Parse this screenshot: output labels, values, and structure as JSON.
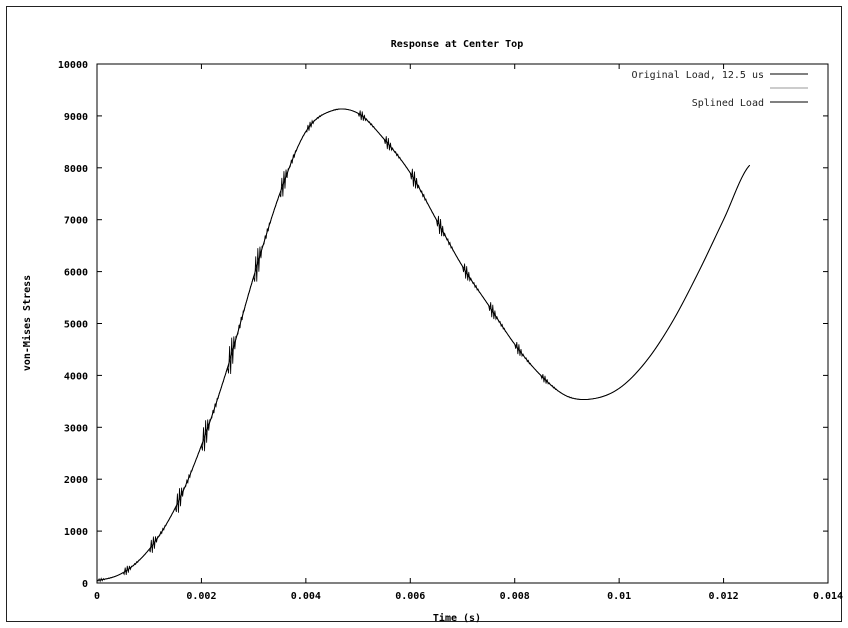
{
  "chart_data": {
    "type": "line",
    "title": "Response at Center Top",
    "xlabel": "Time (s)",
    "ylabel": "von-Mises Stress",
    "xlim": [
      0,
      0.014
    ],
    "ylim": [
      0,
      10000
    ],
    "x_ticks": [
      {
        "value": 0,
        "label": "0"
      },
      {
        "value": 0.002,
        "label": "0.002"
      },
      {
        "value": 0.004,
        "label": "0.004"
      },
      {
        "value": 0.006,
        "label": "0.006"
      },
      {
        "value": 0.008,
        "label": "0.008"
      },
      {
        "value": 0.01,
        "label": "0.01"
      },
      {
        "value": 0.012,
        "label": "0.012"
      },
      {
        "value": 0.014,
        "label": "0.014"
      }
    ],
    "y_ticks": [
      {
        "value": 0,
        "label": "0"
      },
      {
        "value": 1000,
        "label": "1000"
      },
      {
        "value": 2000,
        "label": "2000"
      },
      {
        "value": 3000,
        "label": "3000"
      },
      {
        "value": 4000,
        "label": "4000"
      },
      {
        "value": 5000,
        "label": "5000"
      },
      {
        "value": 6000,
        "label": "6000"
      },
      {
        "value": 7000,
        "label": "7000"
      },
      {
        "value": 8000,
        "label": "8000"
      },
      {
        "value": 9000,
        "label": "9000"
      },
      {
        "value": 10000,
        "label": "10000"
      }
    ],
    "grid": false,
    "legend_position": "top-right",
    "series": [
      {
        "name": "Original Load, 12.5 us",
        "color": "#000000",
        "style": "stepped-oscillating",
        "x": [
          0,
          0.0005,
          0.001,
          0.0015,
          0.002,
          0.0025,
          0.003,
          0.0035,
          0.004,
          0.0045,
          0.005,
          0.0055,
          0.006,
          0.0065,
          0.007,
          0.0075,
          0.008,
          0.0085,
          0.009,
          0.0095,
          0.01,
          0.0105,
          0.011,
          0.0115,
          0.012,
          0.0125
        ],
        "y": [
          50,
          200,
          650,
          1450,
          2650,
          4150,
          5900,
          7500,
          8700,
          9100,
          9050,
          8550,
          7900,
          7000,
          6100,
          5350,
          4600,
          4000,
          3600,
          3550,
          3750,
          4250,
          5000,
          5950,
          7000,
          8050
        ]
      },
      {
        "name": "",
        "color": "#555555",
        "style": "solid",
        "x": [
          0,
          0.0005,
          0.001,
          0.0015,
          0.002,
          0.0025,
          0.003,
          0.0035,
          0.004,
          0.0045,
          0.005,
          0.0055,
          0.006,
          0.0065,
          0.007,
          0.0075,
          0.008,
          0.0085,
          0.009,
          0.0095,
          0.01,
          0.0105,
          0.011,
          0.0115,
          0.012,
          0.0125
        ],
        "y": [
          50,
          200,
          650,
          1450,
          2650,
          4150,
          5900,
          7500,
          8700,
          9100,
          9050,
          8550,
          7900,
          7000,
          6100,
          5350,
          4600,
          4000,
          3600,
          3550,
          3750,
          4250,
          5000,
          5950,
          7000,
          8050
        ]
      },
      {
        "name": "Splined Load",
        "color": "#000000",
        "style": "solid",
        "x": [
          0,
          0.0005,
          0.001,
          0.0015,
          0.002,
          0.0025,
          0.003,
          0.0035,
          0.004,
          0.0045,
          0.005,
          0.0055,
          0.006,
          0.0065,
          0.007,
          0.0075,
          0.008,
          0.0085,
          0.009,
          0.0095,
          0.01,
          0.0105,
          0.011,
          0.0115,
          0.012,
          0.0125
        ],
        "y": [
          50,
          200,
          650,
          1450,
          2650,
          4150,
          5900,
          7500,
          8700,
          9100,
          9050,
          8550,
          7900,
          7000,
          6100,
          5350,
          4600,
          4000,
          3600,
          3550,
          3750,
          4250,
          5000,
          5950,
          7000,
          8050
        ]
      }
    ]
  }
}
